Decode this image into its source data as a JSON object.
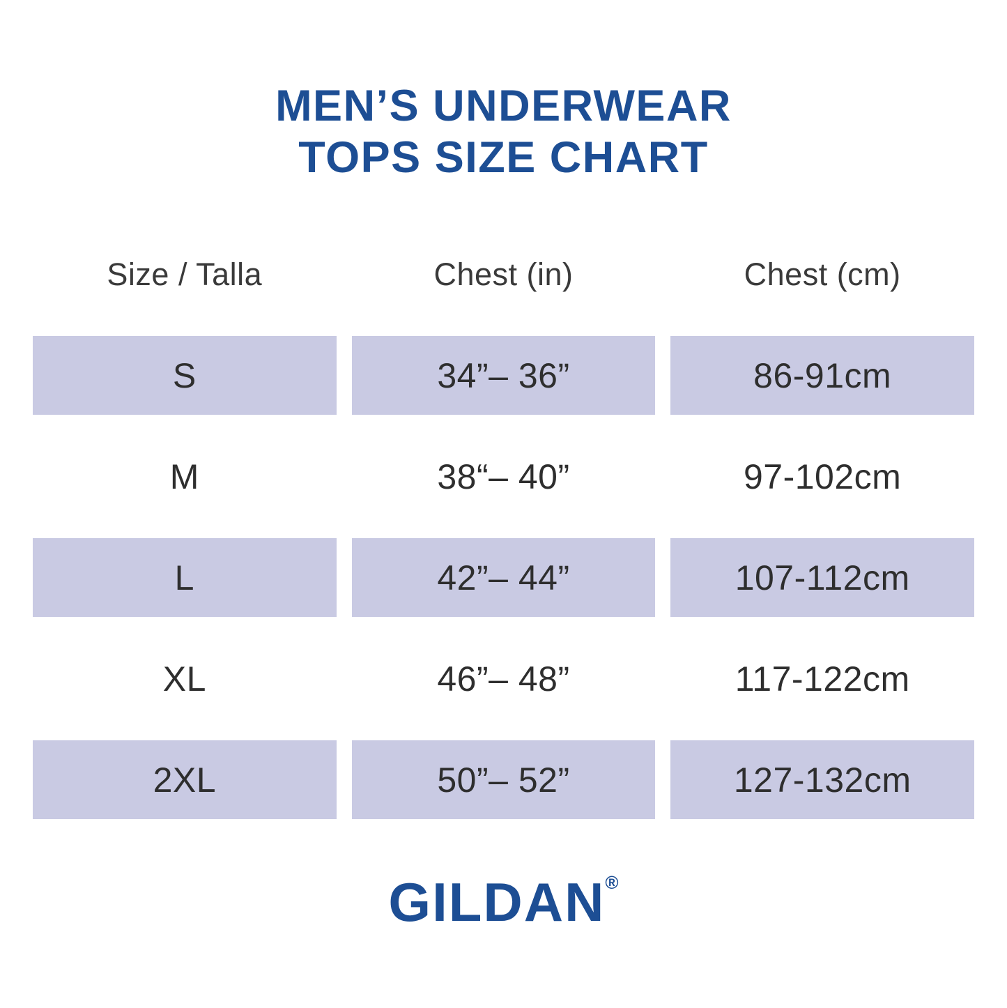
{
  "title": {
    "line1": "MEN’S UNDERWEAR",
    "line2": "TOPS SIZE CHART"
  },
  "table": {
    "headers": [
      "Size / Talla",
      "Chest (in)",
      "Chest (cm)"
    ],
    "rows": [
      {
        "size": "S",
        "chest_in": "34”– 36”",
        "chest_cm": "86-91cm"
      },
      {
        "size": "M",
        "chest_in": "38“– 40”",
        "chest_cm": "97-102cm"
      },
      {
        "size": "L",
        "chest_in": "42”– 44”",
        "chest_cm": "107-112cm"
      },
      {
        "size": "XL",
        "chest_in": "46”– 48”",
        "chest_cm": "117-122cm"
      },
      {
        "size": "2XL",
        "chest_in": "50”– 52”",
        "chest_cm": "127-132cm"
      }
    ]
  },
  "brand": {
    "name": "GILDAN",
    "registered": "®"
  },
  "colors": {
    "brand_blue": "#1d4e94",
    "row_shade": "#c9cae3",
    "text_dark": "#2e2e2e"
  },
  "chart_data": {
    "type": "table",
    "title": "MEN’S UNDERWEAR TOPS SIZE CHART",
    "columns": [
      "Size / Talla",
      "Chest (in)",
      "Chest (cm)"
    ],
    "rows": [
      [
        "S",
        "34”– 36”",
        "86-91cm"
      ],
      [
        "M",
        "38“– 40”",
        "97-102cm"
      ],
      [
        "L",
        "42”– 44”",
        "107-112cm"
      ],
      [
        "XL",
        "46”– 48”",
        "117-122cm"
      ],
      [
        "2XL",
        "50”– 52”",
        "127-132cm"
      ]
    ],
    "layout": {
      "shaded_rows": [
        "S",
        "L",
        "2XL"
      ],
      "shade_color": "#c9cae3",
      "grid": false,
      "footer_brand": "GILDAN®"
    }
  }
}
